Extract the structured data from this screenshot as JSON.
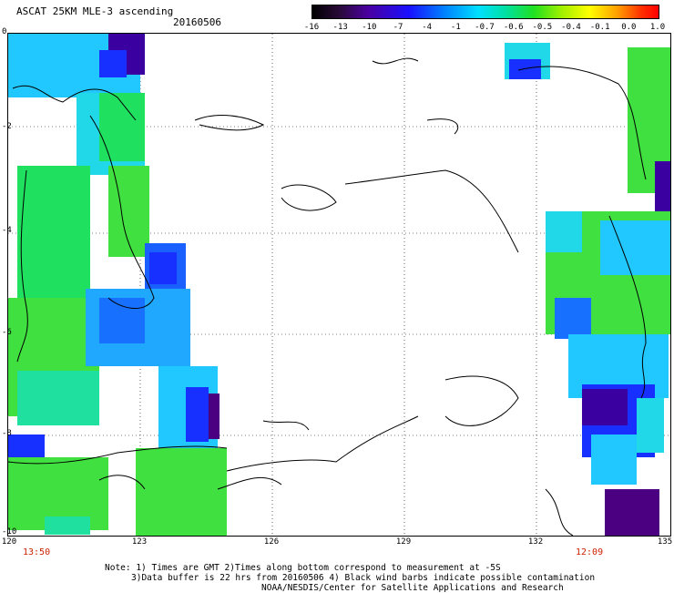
{
  "title": "ASCAT 25KM MLE-3 ascending",
  "date": "20160506",
  "color_scale": {
    "labels": [
      "-16",
      "-13",
      "-10",
      "-7",
      "-4",
      "-1",
      "-0.7",
      "-0.6",
      "-0.5",
      "-0.4",
      "-0.1",
      "0.0",
      "1.0"
    ],
    "colors": [
      "#000000",
      "#4a00a0",
      "#1a10ff",
      "#0080ff",
      "#00e0ff",
      "#00e0a0",
      "#20e020",
      "#a0f000",
      "#ffff00",
      "#ffa000",
      "#ff3000",
      "#ff0000"
    ]
  },
  "axes": {
    "x_ticks": [
      "120",
      "123",
      "126",
      "129",
      "132",
      "135"
    ],
    "y_ticks": [
      "0",
      "-2",
      "-4",
      "-6",
      "-8",
      "-10"
    ]
  },
  "swath_times": {
    "left": "13:50",
    "right": "12:09"
  },
  "notes": [
    "Note: 1) Times are GMT 2)Times along bottom correspond to measurement at -5S",
    "3)Data buffer is 22 hrs from 20160506 4) Black wind barbs indicate possible contamination",
    "NOAA/NESDIS/Center for Satellite Applications and Research"
  ]
}
